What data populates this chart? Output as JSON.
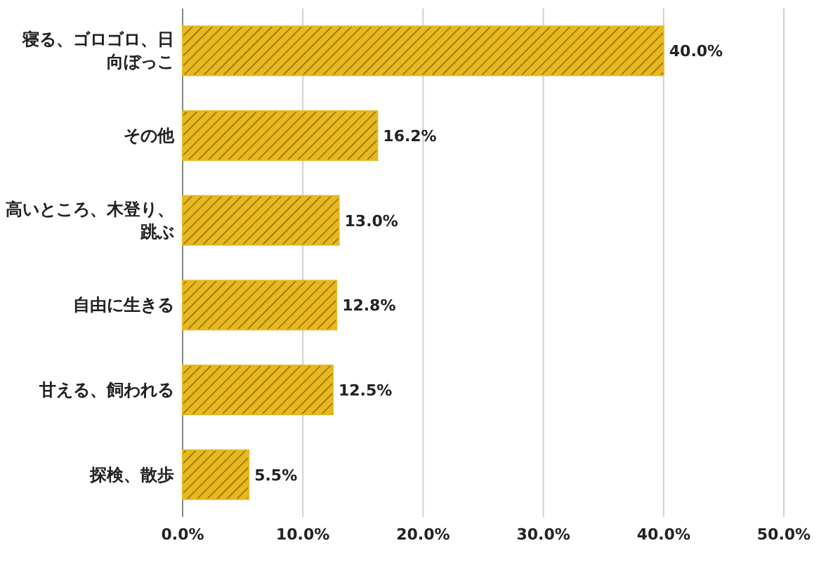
{
  "chart_data": {
    "type": "bar",
    "orientation": "horizontal",
    "categories": [
      "寝る、ゴロゴロ、日向ぼっこ",
      "その他",
      "高いところ、木登り、跳ぶ",
      "自由に生きる",
      "甘える、飼われる",
      "探検、散歩"
    ],
    "values": [
      40.0,
      16.2,
      13.0,
      12.8,
      12.5,
      5.5
    ],
    "value_labels": [
      "40.0%",
      "16.2%",
      "13.0%",
      "12.8%",
      "12.5%",
      "5.5%"
    ],
    "color": "#e8b820",
    "xlim": [
      0,
      50
    ],
    "xticks": [
      {
        "value": 0,
        "label": "0.0%"
      },
      {
        "value": 10,
        "label": "10.0%"
      },
      {
        "value": 20,
        "label": "20.0%"
      },
      {
        "value": 30,
        "label": "30.0%"
      },
      {
        "value": 40,
        "label": "40.0%"
      },
      {
        "value": 50,
        "label": "50.0%"
      }
    ],
    "grid": "x"
  }
}
